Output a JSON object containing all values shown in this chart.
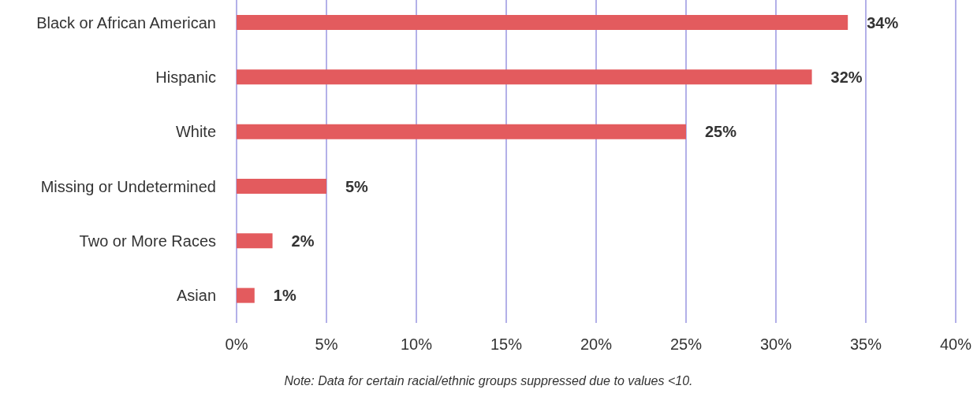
{
  "chart_data": {
    "type": "bar",
    "orientation": "horizontal",
    "categories": [
      "Black or African American",
      "Hispanic",
      "White",
      "Missing or Undetermined",
      "Two or More Races",
      "Asian"
    ],
    "values": [
      34,
      32,
      25,
      5,
      2,
      1
    ],
    "value_labels": [
      "34%",
      "32%",
      "25%",
      "5%",
      "2%",
      "1%"
    ],
    "color": "#e35b5e",
    "xlim": [
      0,
      40
    ],
    "xticks": [
      {
        "value": 0,
        "label": "0%"
      },
      {
        "value": 5,
        "label": "5%"
      },
      {
        "value": 10,
        "label": "10%"
      },
      {
        "value": 15,
        "label": "15%"
      },
      {
        "value": 20,
        "label": "20%"
      },
      {
        "value": 25,
        "label": "25%"
      },
      {
        "value": 30,
        "label": "30%"
      },
      {
        "value": 35,
        "label": "35%"
      },
      {
        "value": 40,
        "label": "40%"
      }
    ],
    "grid": "x",
    "annotations": [
      "Note: Data for certain racial/ethnic groups suppressed due to values <10."
    ]
  }
}
